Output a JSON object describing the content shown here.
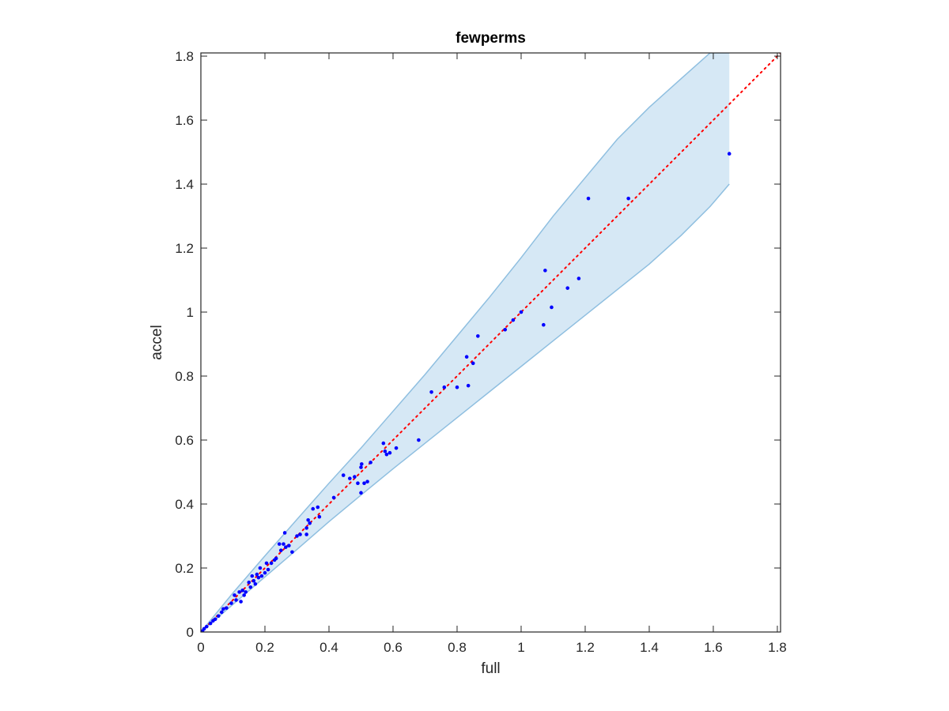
{
  "chart_data": {
    "type": "scatter",
    "title": "fewperms",
    "xlabel": "full",
    "ylabel": "accel",
    "xlim": [
      0,
      1.81
    ],
    "ylim": [
      0,
      1.81
    ],
    "xticks": [
      0,
      0.2,
      0.4,
      0.6,
      0.8,
      1,
      1.2,
      1.4,
      1.6,
      1.8
    ],
    "yticks": [
      0,
      0.2,
      0.4,
      0.6,
      0.8,
      1,
      1.2,
      1.4,
      1.6,
      1.8
    ],
    "xtick_labels": [
      "0",
      "0.2",
      "0.4",
      "0.6",
      "0.8",
      "1",
      "1.2",
      "1.4",
      "1.6",
      "1.8"
    ],
    "ytick_labels": [
      "0",
      "0.2",
      "0.4",
      "0.6",
      "0.8",
      "1",
      "1.2",
      "1.4",
      "1.6",
      "1.8"
    ],
    "grid": false,
    "colors": {
      "points": "#0000ff",
      "band_fill": "#d6e8f5",
      "band_edge": "#8fbfe0",
      "reference_line": "#ff0000",
      "axes": "#262626"
    },
    "reference_line": {
      "style": "dotted",
      "x": [
        0,
        1.81
      ],
      "y": [
        0,
        1.81
      ]
    },
    "band": {
      "x": [
        0,
        0.1,
        0.2,
        0.3,
        0.4,
        0.5,
        0.6,
        0.7,
        0.8,
        0.9,
        1.0,
        1.1,
        1.2,
        1.3,
        1.4,
        1.5,
        1.59,
        1.65
      ],
      "upper": [
        0,
        0.122,
        0.238,
        0.352,
        0.465,
        0.575,
        0.69,
        0.805,
        0.925,
        1.045,
        1.17,
        1.3,
        1.42,
        1.54,
        1.64,
        1.73,
        1.81,
        1.81
      ],
      "lower": [
        0,
        0.086,
        0.172,
        0.258,
        0.345,
        0.428,
        0.51,
        0.59,
        0.67,
        0.75,
        0.83,
        0.91,
        0.99,
        1.07,
        1.15,
        1.24,
        1.33,
        1.4
      ]
    },
    "points": [
      {
        "x": 0.005,
        "y": 0.003
      },
      {
        "x": 0.01,
        "y": 0.01
      },
      {
        "x": 0.018,
        "y": 0.017
      },
      {
        "x": 0.03,
        "y": 0.027
      },
      {
        "x": 0.038,
        "y": 0.035
      },
      {
        "x": 0.045,
        "y": 0.04
      },
      {
        "x": 0.055,
        "y": 0.05
      },
      {
        "x": 0.065,
        "y": 0.062
      },
      {
        "x": 0.07,
        "y": 0.072
      },
      {
        "x": 0.08,
        "y": 0.075
      },
      {
        "x": 0.095,
        "y": 0.09
      },
      {
        "x": 0.105,
        "y": 0.115
      },
      {
        "x": 0.11,
        "y": 0.1
      },
      {
        "x": 0.12,
        "y": 0.125
      },
      {
        "x": 0.125,
        "y": 0.095
      },
      {
        "x": 0.13,
        "y": 0.13
      },
      {
        "x": 0.135,
        "y": 0.115
      },
      {
        "x": 0.14,
        "y": 0.125
      },
      {
        "x": 0.15,
        "y": 0.155
      },
      {
        "x": 0.155,
        "y": 0.14
      },
      {
        "x": 0.16,
        "y": 0.175
      },
      {
        "x": 0.165,
        "y": 0.16
      },
      {
        "x": 0.17,
        "y": 0.15
      },
      {
        "x": 0.175,
        "y": 0.18
      },
      {
        "x": 0.18,
        "y": 0.17
      },
      {
        "x": 0.185,
        "y": 0.2
      },
      {
        "x": 0.19,
        "y": 0.175
      },
      {
        "x": 0.2,
        "y": 0.185
      },
      {
        "x": 0.205,
        "y": 0.215
      },
      {
        "x": 0.21,
        "y": 0.195
      },
      {
        "x": 0.22,
        "y": 0.215
      },
      {
        "x": 0.23,
        "y": 0.225
      },
      {
        "x": 0.235,
        "y": 0.23
      },
      {
        "x": 0.245,
        "y": 0.275
      },
      {
        "x": 0.25,
        "y": 0.255
      },
      {
        "x": 0.258,
        "y": 0.275
      },
      {
        "x": 0.262,
        "y": 0.31
      },
      {
        "x": 0.265,
        "y": 0.265
      },
      {
        "x": 0.275,
        "y": 0.27
      },
      {
        "x": 0.285,
        "y": 0.25
      },
      {
        "x": 0.3,
        "y": 0.3
      },
      {
        "x": 0.31,
        "y": 0.305
      },
      {
        "x": 0.33,
        "y": 0.325
      },
      {
        "x": 0.335,
        "y": 0.35
      },
      {
        "x": 0.34,
        "y": 0.34
      },
      {
        "x": 0.33,
        "y": 0.305
      },
      {
        "x": 0.35,
        "y": 0.385
      },
      {
        "x": 0.365,
        "y": 0.39
      },
      {
        "x": 0.37,
        "y": 0.36
      },
      {
        "x": 0.415,
        "y": 0.42
      },
      {
        "x": 0.445,
        "y": 0.49
      },
      {
        "x": 0.465,
        "y": 0.48
      },
      {
        "x": 0.48,
        "y": 0.485
      },
      {
        "x": 0.49,
        "y": 0.465
      },
      {
        "x": 0.5,
        "y": 0.515
      },
      {
        "x": 0.502,
        "y": 0.525
      },
      {
        "x": 0.5,
        "y": 0.435
      },
      {
        "x": 0.51,
        "y": 0.465
      },
      {
        "x": 0.52,
        "y": 0.47
      },
      {
        "x": 0.53,
        "y": 0.53
      },
      {
        "x": 0.57,
        "y": 0.59
      },
      {
        "x": 0.575,
        "y": 0.565
      },
      {
        "x": 0.58,
        "y": 0.555
      },
      {
        "x": 0.59,
        "y": 0.56
      },
      {
        "x": 0.61,
        "y": 0.575
      },
      {
        "x": 0.68,
        "y": 0.6
      },
      {
        "x": 0.72,
        "y": 0.75
      },
      {
        "x": 0.76,
        "y": 0.765
      },
      {
        "x": 0.8,
        "y": 0.765
      },
      {
        "x": 0.83,
        "y": 0.86
      },
      {
        "x": 0.835,
        "y": 0.77
      },
      {
        "x": 0.85,
        "y": 0.84
      },
      {
        "x": 0.865,
        "y": 0.925
      },
      {
        "x": 0.95,
        "y": 0.945
      },
      {
        "x": 0.975,
        "y": 0.975
      },
      {
        "x": 1.0,
        "y": 1.0
      },
      {
        "x": 1.07,
        "y": 0.96
      },
      {
        "x": 1.075,
        "y": 1.13
      },
      {
        "x": 1.095,
        "y": 1.015
      },
      {
        "x": 1.145,
        "y": 1.075
      },
      {
        "x": 1.18,
        "y": 1.105
      },
      {
        "x": 1.21,
        "y": 1.355
      },
      {
        "x": 1.335,
        "y": 1.355
      },
      {
        "x": 1.65,
        "y": 1.495
      }
    ]
  }
}
